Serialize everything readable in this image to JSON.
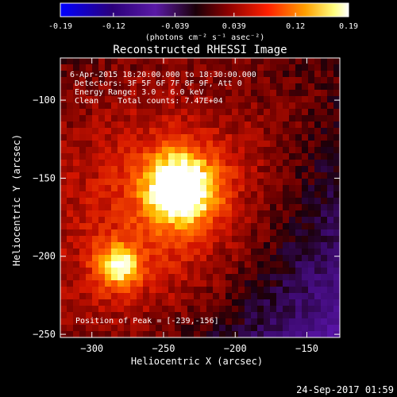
{
  "colorbar": {
    "tick_labels": [
      "-0.19",
      "-0.12",
      "-0.039",
      "0.039",
      "0.12",
      "0.19"
    ],
    "unit_label": "(photons cm⁻² s⁻¹ asec⁻²)",
    "range": [
      -0.19,
      0.19
    ],
    "colors": [
      "#0000ff",
      "#2b007a",
      "#5a1aa6",
      "#1a0008",
      "#8a0000",
      "#ff2000",
      "#ffa000",
      "#ffff80",
      "#ffffff"
    ]
  },
  "chart_data": {
    "type": "heatmap",
    "title": "Reconstructed RHESSI Image",
    "xlabel": "Heliocentric X (arcsec)",
    "ylabel": "Heliocentric Y (arcsec)",
    "xlim": [
      -322,
      -127
    ],
    "ylim": [
      -252,
      -73
    ],
    "x_ticks": [
      -300,
      -250,
      -200,
      -150
    ],
    "y_ticks": [
      -100,
      -150,
      -200,
      -250
    ],
    "x_tick_labels": [
      "−300",
      "−250",
      "−200",
      "−150"
    ],
    "y_tick_labels": [
      "−100",
      "−150",
      "−200",
      "−250"
    ],
    "peak_position": [
      -239,
      -156
    ],
    "sources": [
      {
        "x": -239,
        "y": -156,
        "intensity": 0.19
      },
      {
        "x": -282,
        "y": -206,
        "intensity": 0.13
      }
    ],
    "info_lines": [
      "6-Apr-2015 18:20:00.000 to 18:30:00.000",
      "Detectors: 3F 5F 6F 7F 8F 9F, Att 0",
      "Energy Range: 3.0 - 6.0 keV",
      "Clean    Total counts: 7.47E+04"
    ],
    "peak_label": "Position of Peak = [-239,-156]"
  },
  "footer": {
    "timestamp": "24-Sep-2017 01:59"
  }
}
